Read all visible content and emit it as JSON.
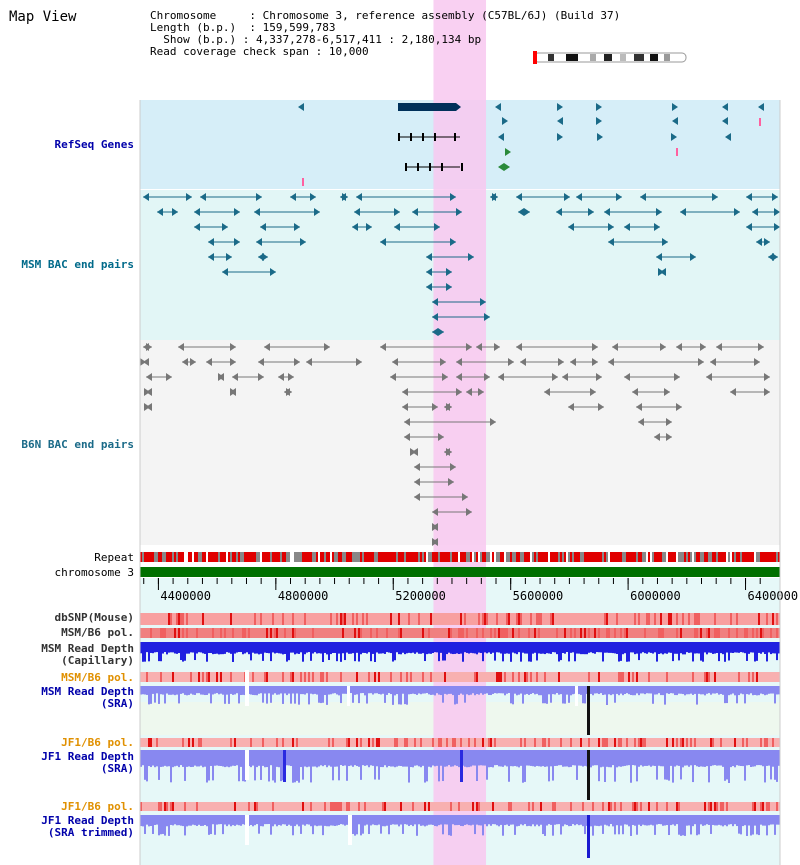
{
  "title": "Map View",
  "info": {
    "chromosome_label": "Chromosome",
    "chromosome_value": "Chromosome 3, reference assembly (C57BL/6J) (Build 37)",
    "length_label": "Length (b.p.)",
    "length_value": "159,599,783",
    "show_label": "Show (b.p.)",
    "show_value": "4,337,278-6,517,411 : 2,180,134 bp",
    "coverage_label": "Read coverage check span",
    "coverage_value": "10,000"
  },
  "tracks": {
    "refseq": "RefSeq Genes",
    "msm_bac": "MSM BAC end pairs",
    "b6n_bac": "B6N BAC end pairs",
    "repeat": "Repeat",
    "chromosome": "chromosome 3",
    "dbsnp": "dbSNP(Mouse)",
    "msm_b6_pol": "MSM/B6 pol.",
    "msm_depth_cap": "MSM Read Depth\n(Capillary)",
    "msm_b6_pol2": "MSM/B6 pol.",
    "msm_depth_sra": "MSM Read Depth\n(SRA)",
    "jf1_b6_pol": "JF1/B6 pol.",
    "jf1_depth_sra": "JF1 Read Depth\n(SRA)",
    "jf1_b6_pol2": "JF1/B6 pol.",
    "jf1_depth_trim": "JF1 Read Depth\n(SRA trimmed)"
  },
  "axis": {
    "ticks": [
      {
        "value": 4400000,
        "label": "4400000"
      },
      {
        "value": 4800000,
        "label": "4800000"
      },
      {
        "value": 5200000,
        "label": "5200000"
      },
      {
        "value": 5600000,
        "label": "5600000"
      },
      {
        "value": 6000000,
        "label": "6000000"
      },
      {
        "value": 6400000,
        "label": "6400000"
      }
    ],
    "start": 4337278,
    "end": 6517411
  },
  "highlight": {
    "start": 5337000,
    "end": 5516000
  },
  "colors": {
    "refseq_bg": "#d6eef8",
    "msm_bg": "#e2f6f6",
    "b6n_bg": "#f4f4f4",
    "lower_bg": "#e6f8f8",
    "sra_bg": "#eef8ee",
    "highlight": "#f8c8f0",
    "gene": "#00305a",
    "msm_feature": "#1a6a88",
    "b6n_feature": "#777777",
    "repeat_red": "#e00000",
    "repeat_gray": "#888888",
    "chromosome": "#007000",
    "depth_dark": "#2020e0",
    "depth_light": "#8888f0",
    "pol_pink": "#f8b0b0"
  }
}
